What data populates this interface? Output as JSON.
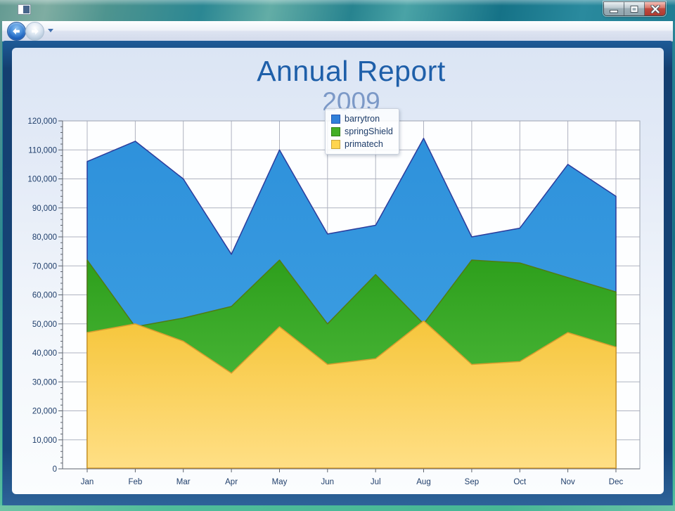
{
  "window": {
    "title": "",
    "icons": {
      "app": "application-icon",
      "minimize": "minimize-icon",
      "maximize": "maximize-icon",
      "close": "close-icon",
      "back": "back-arrow-icon",
      "forward": "forward-arrow-icon",
      "dropdown": "chevron-down-icon"
    }
  },
  "colors": {
    "title": "#1E5FA9",
    "subtitle": "#7C99C7",
    "axis_text": "#1F3E6B",
    "grid": "#AFB3C0",
    "plot_border": "#9CA3B0",
    "axis_line": "#5E646E",
    "plot_bg": "#FDFEFF"
  },
  "chart_data": {
    "type": "area",
    "title": "Annual Report",
    "subtitle": "2009",
    "categories": [
      "Jan",
      "Feb",
      "Mar",
      "Apr",
      "May",
      "Jun",
      "Jul",
      "Aug",
      "Sep",
      "Oct",
      "Nov",
      "Dec"
    ],
    "series": [
      {
        "name": "barrytron",
        "values": [
          106000,
          113000,
          100000,
          74000,
          110000,
          81000,
          84000,
          114000,
          80000,
          83000,
          105000,
          94000
        ],
        "fill_top": "#2E91DB",
        "fill_bottom": "#41A3E4",
        "stroke": "#2B3C9C",
        "chip_fill": "#2F7FD8",
        "chip_border": "#2255B5"
      },
      {
        "name": "springShield",
        "values": [
          72000,
          49000,
          52000,
          56000,
          72000,
          50000,
          67000,
          50000,
          72000,
          71000,
          66000,
          61000
        ],
        "fill_top": "#2E9F1C",
        "fill_bottom": "#58C247",
        "stroke": "#507C12",
        "chip_fill": "#44AF25",
        "chip_border": "#2F7D14"
      },
      {
        "name": "primatech",
        "values": [
          47000,
          50000,
          44000,
          33000,
          49000,
          36000,
          38000,
          51000,
          36000,
          37000,
          47000,
          42000
        ],
        "fill_top": "#F6C63C",
        "fill_bottom": "#FFDF85",
        "stroke": "#D99D2F",
        "chip_fill": "#FFD54F",
        "chip_border": "#C9A43A"
      }
    ],
    "ylim": [
      0,
      120000
    ],
    "y_major_step": 10000,
    "y_minor_step": 2000,
    "y_tick_labels": [
      "0",
      "10,000",
      "20,000",
      "30,000",
      "40,000",
      "50,000",
      "60,000",
      "70,000",
      "80,000",
      "90,000",
      "100,000",
      "110,000",
      "120,000"
    ],
    "grid": true,
    "legend_position": "top-center"
  }
}
